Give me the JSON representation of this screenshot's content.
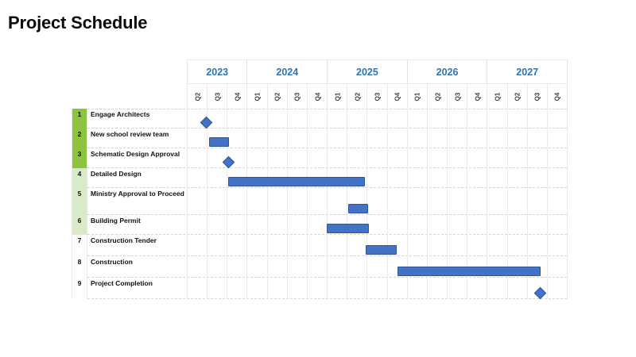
{
  "title": "Project Schedule",
  "colors": {
    "bar_fill": "#4472C4",
    "bar_border": "#2F5597",
    "year_label": "#2E74B5",
    "group_fills": {
      "green": "#8CC43F",
      "light_green": "#D9EAC9",
      "none": "#FFFFFF"
    }
  },
  "timeline": {
    "start": "Q2 2023",
    "end": "Q4 2027",
    "years": [
      {
        "label": "2023",
        "quarters": [
          "Q2",
          "Q3",
          "Q4"
        ]
      },
      {
        "label": "2024",
        "quarters": [
          "Q1",
          "Q2",
          "Q3",
          "Q4"
        ]
      },
      {
        "label": "2025",
        "quarters": [
          "Q1",
          "Q2",
          "Q3",
          "Q4"
        ]
      },
      {
        "label": "2026",
        "quarters": [
          "Q1",
          "Q2",
          "Q3",
          "Q4"
        ]
      },
      {
        "label": "2027",
        "quarters": [
          "Q1",
          "Q2",
          "Q3",
          "Q4"
        ]
      }
    ]
  },
  "chart_data": {
    "type": "gantt",
    "axis_unit": "quarters elapsed since start of Q2 2023 (1 unit = 1 quarter)",
    "axis_range": [
      0,
      19
    ],
    "tasks": [
      {
        "row": "1",
        "name": "Engage Architects",
        "shape": "milestone",
        "at": 0.97,
        "group": "green",
        "approx": "end of Q2 2023"
      },
      {
        "row": "2",
        "name": "New school review team",
        "shape": "bar",
        "start": 1.1,
        "end": 2.1,
        "group": "green",
        "approx": "Q3 2023"
      },
      {
        "row": "3",
        "name": "Schematic Design Approval",
        "shape": "milestone",
        "at": 2.1,
        "group": "green",
        "approx": "end of Q3 2023"
      },
      {
        "row": "4",
        "name": "Detailed Design",
        "shape": "bar",
        "start": 2.08,
        "end": 8.9,
        "group": "light_green",
        "approx": "Q4 2023 - end Q2 2025"
      },
      {
        "row": "5",
        "name": "Ministry Approval to Proceed",
        "shape": "bar",
        "start": 8.05,
        "end": 9.05,
        "group": "light_green",
        "approx": "Q2 2025"
      },
      {
        "row": "6",
        "name": "Building Permit",
        "shape": "bar",
        "start": 7.0,
        "end": 9.1,
        "group": "light_green",
        "approx": "Q1 2025 - Q2 2025"
      },
      {
        "row": "7",
        "name": "Construction Tender",
        "shape": "bar",
        "start": 8.95,
        "end": 10.5,
        "group": "none",
        "approx": "Q3 2025 - mid Q4 2025"
      },
      {
        "row": "8",
        "name": "Construction",
        "shape": "bar",
        "start": 10.55,
        "end": 17.7,
        "group": "none",
        "approx": "mid Q4 2025 - mid Q3 2027"
      },
      {
        "row": "9",
        "name": "Project Completion",
        "shape": "milestone",
        "at": 17.65,
        "group": "none",
        "approx": "mid Q3 2027"
      }
    ]
  }
}
